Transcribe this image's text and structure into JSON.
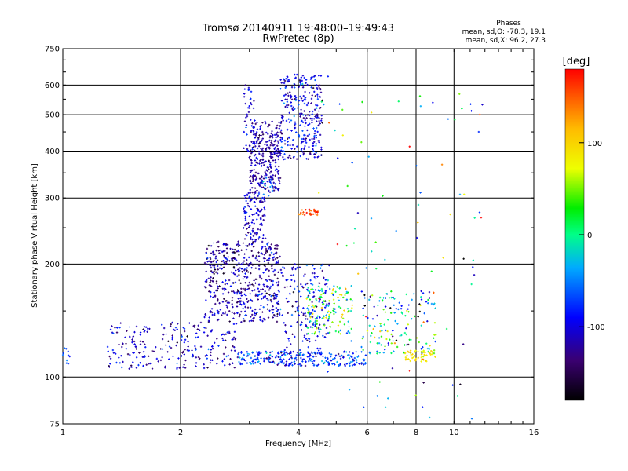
{
  "chart_data": {
    "type": "scatter",
    "title": "Tromsø 20140911 19:48:00–19:49:43",
    "subtitle": "RwPretec (8p)",
    "xlabel": "Frequency [MHz]",
    "ylabel": "Stationary phase Virtual Height [km]",
    "x_scale": "log",
    "y_scale": "log",
    "xlim": [
      1,
      16
    ],
    "ylim": [
      75,
      750
    ],
    "x_ticks": [
      1,
      2,
      4,
      6,
      8,
      10,
      16
    ],
    "x_tick_labels": [
      "1",
      "2",
      "4",
      "6",
      "8",
      "10",
      "16"
    ],
    "y_ticks": [
      75,
      100,
      200,
      300,
      400,
      500,
      600,
      750
    ],
    "y_tick_labels": [
      "75",
      "100",
      "200",
      "300",
      "400",
      "500",
      "600",
      "750"
    ],
    "grid": true,
    "phase_info": {
      "heading": "Phases",
      "line_o": "mean, sd,O: -78.3, 19.1",
      "line_x": "mean, sd,X:  96.2, 27.3"
    },
    "colorbar": {
      "label": "[deg]",
      "range": [
        -180,
        180
      ],
      "ticks": [
        100,
        0,
        -100
      ],
      "tick_labels": [
        "100",
        "0",
        "-100"
      ]
    },
    "clusters": [
      {
        "f_range": [
          1.3,
          2.8
        ],
        "h_range": [
          105,
          140
        ],
        "n": 240,
        "phase": -110,
        "phase_sd": 25
      },
      {
        "f_range": [
          1.0,
          1.05
        ],
        "h_range": [
          108,
          120
        ],
        "n": 10,
        "phase": -60,
        "phase_sd": 15
      },
      {
        "f_range": [
          2.3,
          3.6
        ],
        "h_range": [
          140,
          230
        ],
        "n": 520,
        "phase": -120,
        "phase_sd": 25
      },
      {
        "f_range": [
          2.9,
          3.3
        ],
        "h_range": [
          230,
          310
        ],
        "n": 120,
        "phase": -110,
        "phase_sd": 20
      },
      {
        "f_range": [
          3.0,
          3.6
        ],
        "h_range": [
          310,
          480
        ],
        "n": 280,
        "phase": -120,
        "phase_sd": 15
      },
      {
        "f_range": [
          2.9,
          3.1
        ],
        "h_range": [
          400,
          600
        ],
        "n": 40,
        "phase": -100,
        "phase_sd": 20
      },
      {
        "f_range": [
          3.6,
          4.6
        ],
        "h_range": [
          380,
          640
        ],
        "n": 300,
        "phase": -100,
        "phase_sd": 25
      },
      {
        "f_range": [
          2.8,
          6.0
        ],
        "h_range": [
          107,
          117
        ],
        "n": 260,
        "phase": -75,
        "phase_sd": 30
      },
      {
        "f_range": [
          3.6,
          4.8
        ],
        "h_range": [
          115,
          200
        ],
        "n": 180,
        "phase": -95,
        "phase_sd": 30
      },
      {
        "f_range": [
          4.2,
          5.5
        ],
        "h_range": [
          130,
          175
        ],
        "n": 140,
        "phase": 20,
        "phase_sd": 50
      },
      {
        "f_range": [
          5.8,
          9.0
        ],
        "h_range": [
          115,
          170
        ],
        "n": 150,
        "phase": -20,
        "phase_sd": 70
      },
      {
        "f_range": [
          7.5,
          8.8
        ],
        "h_range": [
          110,
          118
        ],
        "n": 50,
        "phase": 90,
        "phase_sd": 15
      },
      {
        "f_range": [
          4.0,
          4.5
        ],
        "h_range": [
          270,
          280
        ],
        "n": 30,
        "phase": 150,
        "phase_sd": 15
      },
      {
        "f_range": [
          4.5,
          12.0
        ],
        "h_range": [
          75,
          650
        ],
        "n": 100,
        "phase": 0,
        "phase_sd": 100
      },
      {
        "f_range": [
          3.2,
          3.6
        ],
        "h_range": [
          300,
          340
        ],
        "n": 20,
        "phase": -60,
        "phase_sd": 20
      }
    ]
  }
}
